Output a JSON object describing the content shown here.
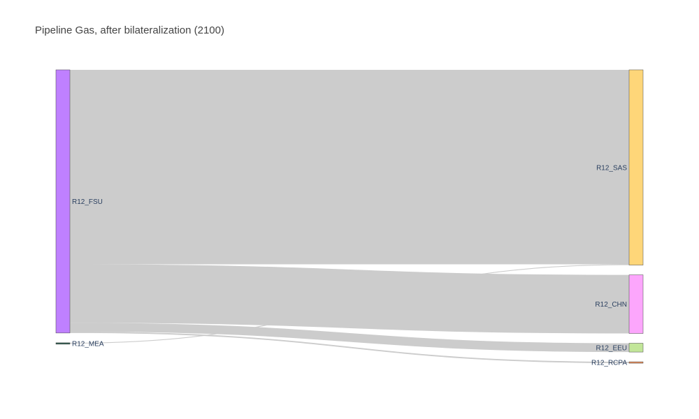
{
  "title": "Pipeline Gas, after bilateralization (2100)",
  "chart_data": {
    "type": "sankey",
    "title": "Pipeline Gas, after bilateralization (2100)",
    "nodes": [
      {
        "id": "R12_FSU",
        "label": "R12_FSU",
        "side": "source",
        "color": "#bf80ff"
      },
      {
        "id": "R12_MEA",
        "label": "R12_MEA",
        "side": "source",
        "color": "#2f5d50"
      },
      {
        "id": "R12_SAS",
        "label": "R12_SAS",
        "side": "target",
        "color": "#fed679"
      },
      {
        "id": "R12_CHN",
        "label": "R12_CHN",
        "side": "target",
        "color": "#fca6fc"
      },
      {
        "id": "R12_EEU",
        "label": "R12_EEU",
        "side": "target",
        "color": "#c2e699"
      },
      {
        "id": "R12_RCPA",
        "label": "R12_RCPA",
        "side": "target",
        "color": "#ea8e59"
      }
    ],
    "links": [
      {
        "source": "R12_FSU",
        "target": "R12_SAS",
        "value": 73.0
      },
      {
        "source": "R12_FSU",
        "target": "R12_CHN",
        "value": 22.0
      },
      {
        "source": "R12_FSU",
        "target": "R12_EEU",
        "value": 3.3
      },
      {
        "source": "R12_FSU",
        "target": "R12_RCPA",
        "value": 0.5
      },
      {
        "source": "R12_MEA",
        "target": "R12_SAS",
        "value": 0.3
      }
    ],
    "link_color": "#cccccc"
  }
}
